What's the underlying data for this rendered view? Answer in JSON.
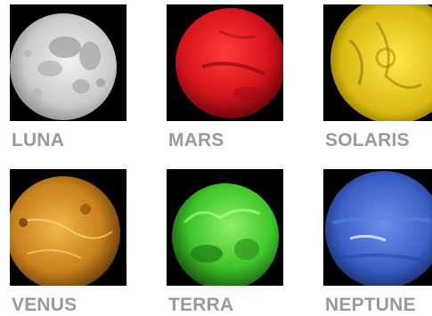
{
  "planets": [
    {
      "label": "LUNA",
      "icon": "moon-icon",
      "color": "#d8d8d8",
      "label_color": "#9a9a9a"
    },
    {
      "label": "MARS",
      "icon": "mars-icon",
      "color": "#d8141c",
      "label_color": "#9a9a9a"
    },
    {
      "label": "SOLARIS",
      "icon": "sun-icon",
      "color": "#e6c81a",
      "label_color": "#9a9a9a"
    },
    {
      "label": "VENUS",
      "icon": "venus-icon",
      "color": "#d08a24",
      "label_color": "#9a9a9a"
    },
    {
      "label": "TERRA",
      "icon": "earth-icon",
      "color": "#3ec42a",
      "label_color": "#9a9a9a"
    },
    {
      "label": "NEPTUNE",
      "icon": "neptune-icon",
      "color": "#3a60c8",
      "label_color": "#9a9a9a"
    }
  ]
}
